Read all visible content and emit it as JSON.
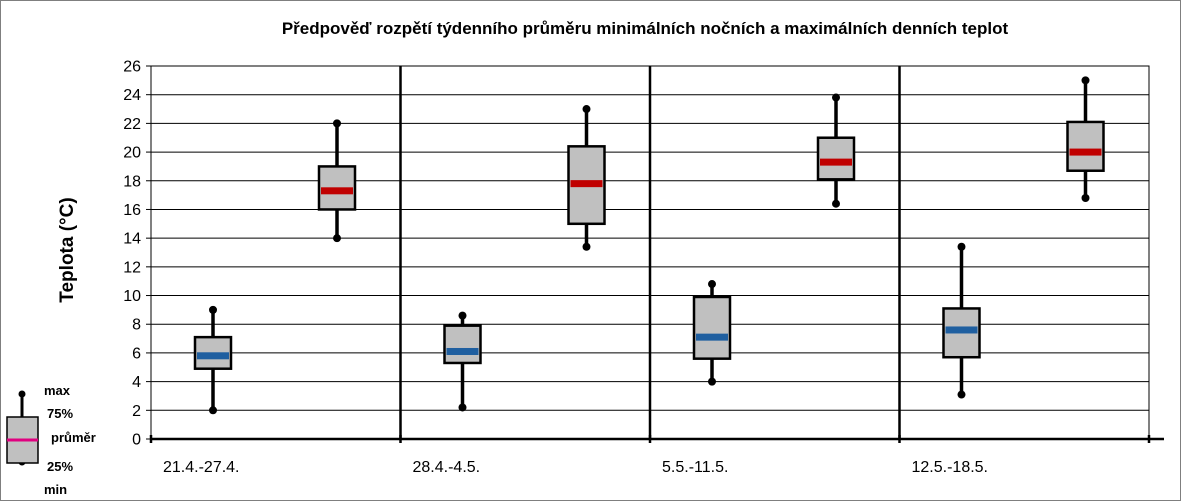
{
  "chart_data": {
    "type": "box",
    "title": "Předpověď rozpětí týdenního průměru minimálních nočních a maximálních denních teplot",
    "ylabel": "Teplota (°C)",
    "xlabel": "",
    "ylim": [
      0,
      26
    ],
    "yticks": [
      0,
      2,
      4,
      6,
      8,
      10,
      12,
      14,
      16,
      18,
      20,
      22,
      24,
      26
    ],
    "grid": true,
    "categories": [
      "21.4.-27.4.",
      "28.4.-4.5.",
      "5.5.-11.5.",
      "12.5.-18.5."
    ],
    "series": [
      {
        "key": "night_min",
        "mean_color": "#1f5fa0",
        "boxes": [
          {
            "min": 2.0,
            "q25": 4.9,
            "mean": 5.8,
            "q75": 7.1,
            "max": 9.0
          },
          {
            "min": 2.2,
            "q25": 5.3,
            "mean": 6.1,
            "q75": 7.9,
            "max": 8.6
          },
          {
            "min": 4.0,
            "q25": 5.6,
            "mean": 7.1,
            "q75": 9.9,
            "max": 10.8
          },
          {
            "min": 3.1,
            "q25": 5.7,
            "mean": 7.6,
            "q75": 9.1,
            "max": 13.4
          }
        ]
      },
      {
        "key": "day_max",
        "mean_color": "#c00000",
        "boxes": [
          {
            "min": 14.0,
            "q25": 16.0,
            "mean": 17.3,
            "q75": 19.0,
            "max": 22.0
          },
          {
            "min": 13.4,
            "q25": 15.0,
            "mean": 17.8,
            "q75": 20.4,
            "max": 23.0
          },
          {
            "min": 16.4,
            "q25": 18.1,
            "mean": 19.3,
            "q75": 21.0,
            "max": 23.8
          },
          {
            "min": 16.8,
            "q25": 18.7,
            "mean": 20.0,
            "q75": 22.1,
            "max": 25.0
          }
        ]
      }
    ],
    "legend": {
      "position": "bottom-left",
      "labels": {
        "max": "max",
        "q75": "75%",
        "mean": "průměr",
        "q25": "25%",
        "min": "min"
      }
    },
    "colors": {
      "box_fill": "#c0c0c0",
      "legend_mean": "#e0007f"
    }
  }
}
